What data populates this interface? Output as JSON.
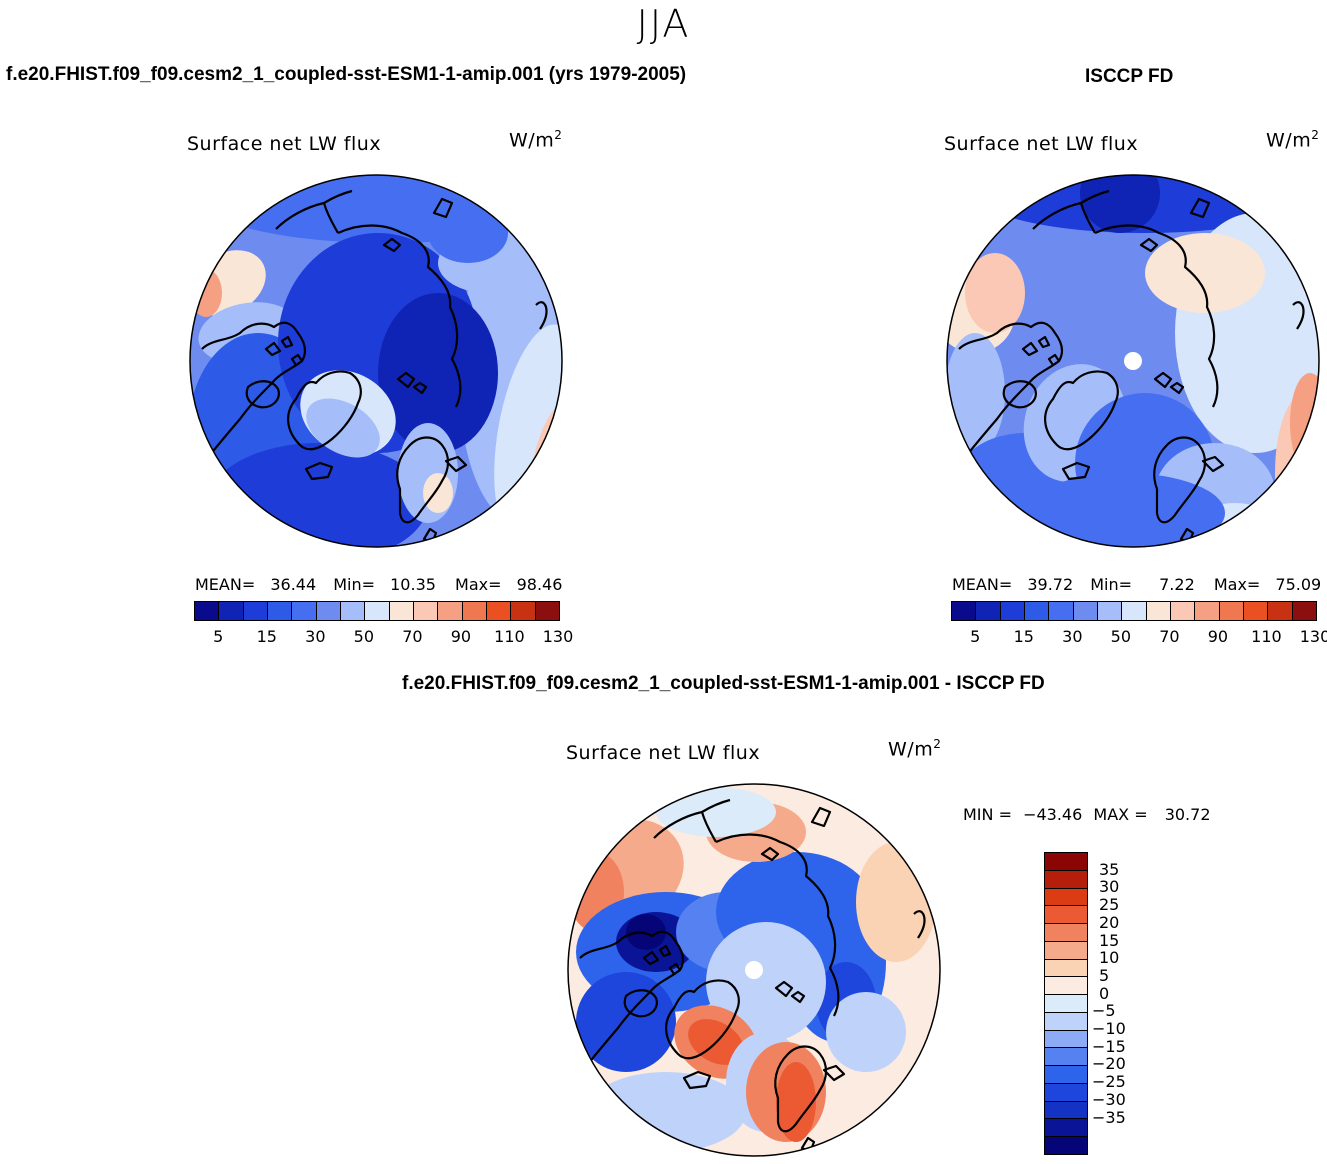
{
  "figure": {
    "season": "JJA",
    "model_title": "f.e20.FHIST.f09_f09.cesm2_1_coupled-sst-ESM1-1-amip.001 (yrs 1979-2005)",
    "obs_title": "ISCCP FD",
    "diff_title": "f.e20.FHIST.f09_f09.cesm2_1_coupled-sst-ESM1-1-amip.001 - ISCCP FD"
  },
  "panels": {
    "model": {
      "title": "Surface net LW flux",
      "units_base": "W/m",
      "units_exp": "2",
      "mean_label": "MEAN=",
      "mean": "36.44",
      "min_label": "Min=",
      "min": "10.35",
      "max_label": "Max=",
      "max": "98.46"
    },
    "obs": {
      "title": "Surface net LW flux",
      "units_base": "W/m",
      "units_exp": "2",
      "mean_label": "MEAN=",
      "mean": "39.72",
      "min_label": "Min=",
      "min": "7.22",
      "max_label": "Max=",
      "max": "75.09"
    },
    "diff": {
      "title": "Surface net LW flux",
      "units_base": "W/m",
      "units_exp": "2",
      "min_label": "MIN =",
      "min": "−43.46",
      "max_label": "MAX =",
      "max": "30.72"
    }
  },
  "colors": {
    "abs_palette": [
      "#0a0a8c",
      "#0f23b4",
      "#1e3cd7",
      "#2d5ae6",
      "#466ef0",
      "#6e8cf0",
      "#a5befa",
      "#d7e6fa",
      "#fae6d7",
      "#fac8b4",
      "#f5a082",
      "#f07850",
      "#eb5023",
      "#c83212",
      "#8c0f0f"
    ],
    "diff_palette": [
      "#050578",
      "#0a1496",
      "#1432c3",
      "#1e46dc",
      "#2d64eb",
      "#5582f0",
      "#8caaf5",
      "#bed2fa",
      "#dcebfa",
      "#fcebe0",
      "#fad2b4",
      "#f5aa8c",
      "#f08260",
      "#eb5a32",
      "#dc3c14",
      "#b41e0a",
      "#8c0505"
    ],
    "pole_marker": "#ffffff",
    "coastline": "#000000"
  },
  "chart_data": [
    {
      "type": "heatmap",
      "id": "model",
      "projection": "north polar stereographic",
      "title": "Surface net LW flux",
      "units": "W/m^2",
      "stats": {
        "mean": 36.44,
        "min": 10.35,
        "max": 98.46
      },
      "colorbar": {
        "orientation": "horizontal",
        "levels": [
          5,
          10,
          15,
          20,
          30,
          40,
          50,
          60,
          70,
          80,
          90,
          100,
          110,
          120,
          130
        ],
        "tick_labels": [
          "5",
          "15",
          "30",
          "50",
          "70",
          "90",
          "110",
          "130"
        ]
      }
    },
    {
      "type": "heatmap",
      "id": "obs",
      "projection": "north polar stereographic",
      "title": "Surface net LW flux",
      "units": "W/m^2",
      "stats": {
        "mean": 39.72,
        "min": 7.22,
        "max": 75.09
      },
      "colorbar": {
        "orientation": "horizontal",
        "levels": [
          5,
          10,
          15,
          20,
          30,
          40,
          50,
          60,
          70,
          80,
          90,
          100,
          110,
          120,
          130
        ],
        "tick_labels": [
          "5",
          "15",
          "30",
          "50",
          "70",
          "90",
          "110",
          "130"
        ]
      }
    },
    {
      "type": "heatmap",
      "id": "diff",
      "projection": "north polar stereographic",
      "title": "Surface net LW flux",
      "units": "W/m^2",
      "stats": {
        "min": -43.46,
        "max": 30.72
      },
      "colorbar": {
        "orientation": "vertical",
        "levels": [
          -35,
          -30,
          -25,
          -20,
          -15,
          -10,
          -5,
          0,
          5,
          10,
          15,
          20,
          25,
          30,
          35
        ],
        "tick_labels": [
          "35",
          "30",
          "25",
          "20",
          "15",
          "10",
          "5",
          "0",
          "−5",
          "−10",
          "−15",
          "−20",
          "−25",
          "−30",
          "−35"
        ]
      }
    }
  ]
}
